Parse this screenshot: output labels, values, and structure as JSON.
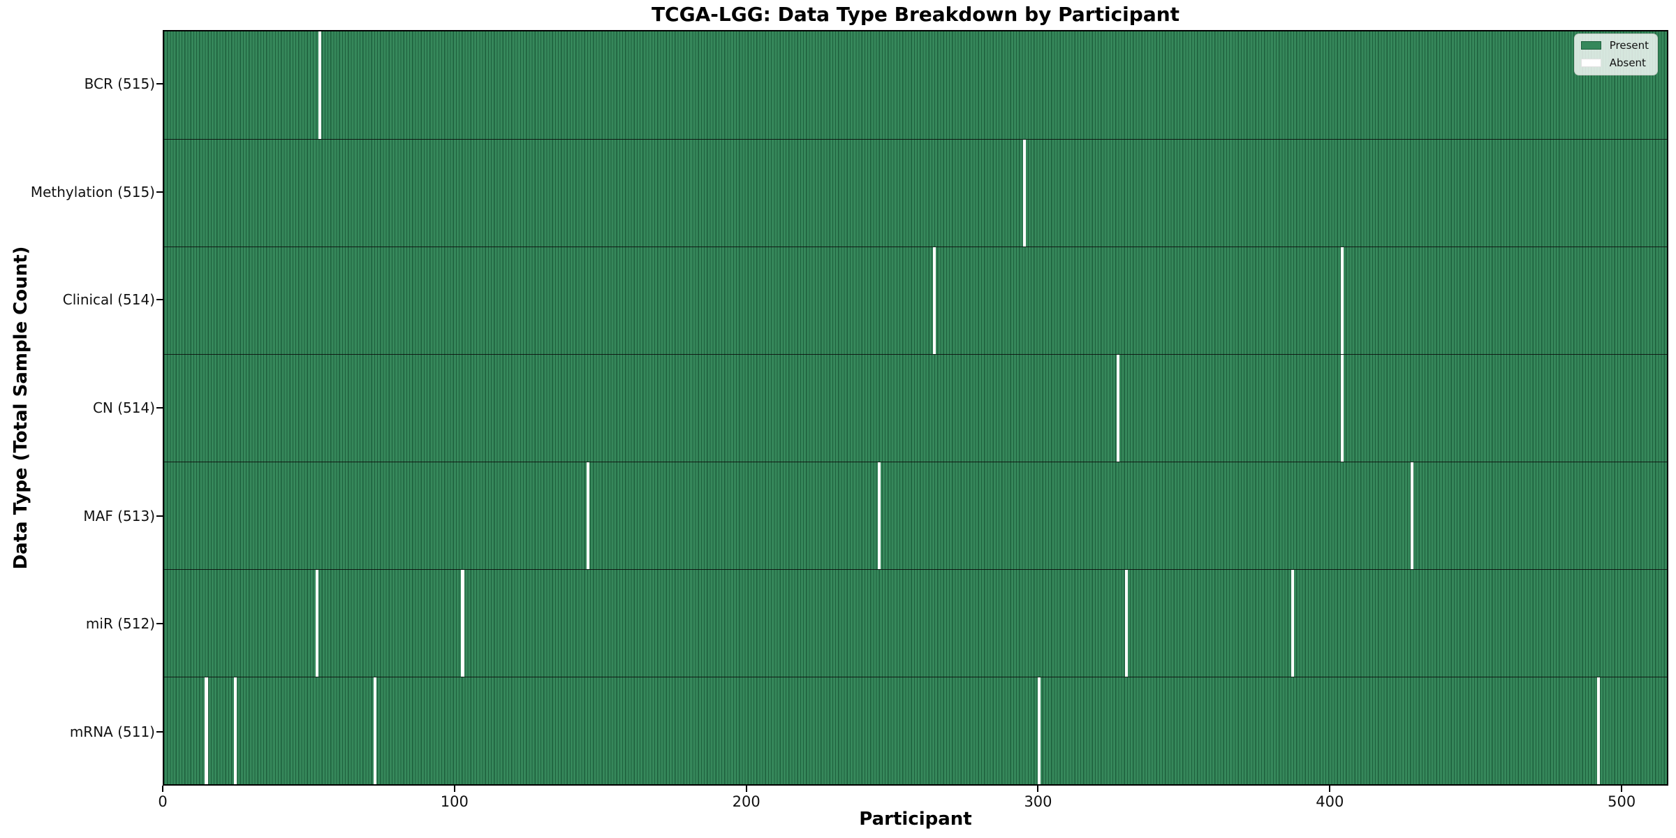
{
  "chart_data": {
    "type": "heatmap",
    "title": "TCGA-LGG: Data Type Breakdown by Participant",
    "xlabel": "Participant",
    "ylabel": "Data Type (Total Sample Count)",
    "n_participants": 516,
    "x_ticks": [
      0,
      100,
      200,
      300,
      400,
      500
    ],
    "xlim": [
      0,
      516
    ],
    "grid": false,
    "legend": {
      "position": "upper right",
      "entries": [
        {
          "label": "Present",
          "color": "#36885b"
        },
        {
          "label": "Absent",
          "color": "#ffffff"
        }
      ]
    },
    "colors": {
      "present_fill": "#36885b",
      "absent_fill": "#ffffff",
      "bar_edge": "#1d5f3c",
      "row_separator": "#111111",
      "plot_border": "#000000",
      "background": "#ffffff"
    },
    "rows": [
      {
        "name": "BCR",
        "label": "BCR (515)",
        "present_count": 515,
        "absent_participants": [
          53
        ]
      },
      {
        "name": "Methylation",
        "label": "Methylation (515)",
        "present_count": 515,
        "absent_participants": [
          295
        ]
      },
      {
        "name": "Clinical",
        "label": "Clinical (514)",
        "present_count": 514,
        "absent_participants": [
          264,
          404
        ]
      },
      {
        "name": "CN",
        "label": "CN (514)",
        "present_count": 514,
        "absent_participants": [
          327,
          404
        ]
      },
      {
        "name": "MAF",
        "label": "MAF (513)",
        "present_count": 513,
        "absent_participants": [
          145,
          245,
          428
        ]
      },
      {
        "name": "miR",
        "label": "miR (512)",
        "present_count": 512,
        "absent_participants": [
          52,
          102,
          330,
          387
        ]
      },
      {
        "name": "mRNA",
        "label": "mRNA (511)",
        "present_count": 511,
        "absent_participants": [
          14,
          24,
          72,
          300,
          492
        ]
      }
    ]
  }
}
